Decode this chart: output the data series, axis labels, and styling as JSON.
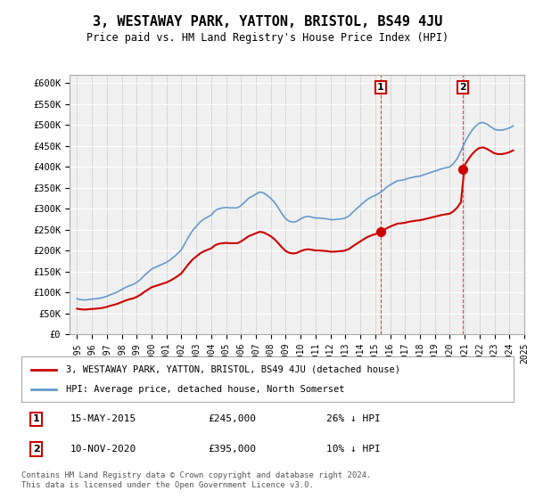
{
  "title": "3, WESTAWAY PARK, YATTON, BRISTOL, BS49 4JU",
  "subtitle": "Price paid vs. HM Land Registry's House Price Index (HPI)",
  "background_color": "#ffffff",
  "plot_bg_color": "#f0f0f0",
  "ylim": [
    0,
    620000
  ],
  "yticks": [
    0,
    50000,
    100000,
    150000,
    200000,
    250000,
    300000,
    350000,
    400000,
    450000,
    500000,
    550000,
    600000
  ],
  "ytick_labels": [
    "£0",
    "£50K",
    "£100K",
    "£150K",
    "£200K",
    "£250K",
    "£300K",
    "£350K",
    "£400K",
    "£450K",
    "£500K",
    "£550K",
    "£600K"
  ],
  "sale1_date": 2015.37,
  "sale1_price": 245000,
  "sale1_label": "1",
  "sale2_date": 2020.87,
  "sale2_price": 395000,
  "sale2_label": "2",
  "hpi_color": "#6699cc",
  "sale_color": "#cc0000",
  "vline_color": "#cc0000",
  "annotation_box_color": "#cc0000",
  "legend_label_sale": "3, WESTAWAY PARK, YATTON, BRISTOL, BS49 4JU (detached house)",
  "legend_label_hpi": "HPI: Average price, detached house, North Somerset",
  "note1_label": "1",
  "note1_date": "15-MAY-2015",
  "note1_price": "£245,000",
  "note1_pct": "26% ↓ HPI",
  "note2_label": "2",
  "note2_date": "10-NOV-2020",
  "note2_price": "£395,000",
  "note2_pct": "10% ↓ HPI",
  "copyright": "Contains HM Land Registry data © Crown copyright and database right 2024.\nThis data is licensed under the Open Government Licence v3.0.",
  "hpi_years": [
    1995.0,
    1995.25,
    1995.5,
    1995.75,
    1996.0,
    1996.25,
    1996.5,
    1996.75,
    1997.0,
    1997.25,
    1997.5,
    1997.75,
    1998.0,
    1998.25,
    1998.5,
    1998.75,
    1999.0,
    1999.25,
    1999.5,
    1999.75,
    2000.0,
    2000.25,
    2000.5,
    2000.75,
    2001.0,
    2001.25,
    2001.5,
    2001.75,
    2002.0,
    2002.25,
    2002.5,
    2002.75,
    2003.0,
    2003.25,
    2003.5,
    2003.75,
    2004.0,
    2004.25,
    2004.5,
    2004.75,
    2005.0,
    2005.25,
    2005.5,
    2005.75,
    2006.0,
    2006.25,
    2006.5,
    2006.75,
    2007.0,
    2007.25,
    2007.5,
    2007.75,
    2008.0,
    2008.25,
    2008.5,
    2008.75,
    2009.0,
    2009.25,
    2009.5,
    2009.75,
    2010.0,
    2010.25,
    2010.5,
    2010.75,
    2011.0,
    2011.25,
    2011.5,
    2011.75,
    2012.0,
    2012.25,
    2012.5,
    2012.75,
    2013.0,
    2013.25,
    2013.5,
    2013.75,
    2014.0,
    2014.25,
    2014.5,
    2014.75,
    2015.0,
    2015.25,
    2015.5,
    2015.75,
    2016.0,
    2016.25,
    2016.5,
    2016.75,
    2017.0,
    2017.25,
    2017.5,
    2017.75,
    2018.0,
    2018.25,
    2018.5,
    2018.75,
    2019.0,
    2019.25,
    2019.5,
    2019.75,
    2020.0,
    2020.25,
    2020.5,
    2020.75,
    2021.0,
    2021.25,
    2021.5,
    2021.75,
    2022.0,
    2022.25,
    2022.5,
    2022.75,
    2023.0,
    2023.25,
    2023.5,
    2023.75,
    2024.0,
    2024.25
  ],
  "hpi_values": [
    85000,
    83000,
    82000,
    83000,
    84000,
    85000,
    86000,
    88000,
    91000,
    95000,
    98000,
    102000,
    107000,
    112000,
    116000,
    119000,
    124000,
    131000,
    140000,
    148000,
    156000,
    160000,
    164000,
    168000,
    172000,
    178000,
    185000,
    193000,
    202000,
    218000,
    234000,
    248000,
    258000,
    268000,
    275000,
    280000,
    285000,
    295000,
    300000,
    302000,
    303000,
    302000,
    302000,
    302000,
    308000,
    316000,
    325000,
    330000,
    335000,
    340000,
    338000,
    332000,
    325000,
    315000,
    302000,
    288000,
    276000,
    270000,
    268000,
    270000,
    276000,
    280000,
    282000,
    280000,
    278000,
    278000,
    277000,
    276000,
    274000,
    274000,
    275000,
    276000,
    278000,
    283000,
    292000,
    300000,
    308000,
    316000,
    323000,
    328000,
    332000,
    337000,
    343000,
    351000,
    357000,
    362000,
    367000,
    368000,
    370000,
    373000,
    375000,
    377000,
    378000,
    381000,
    384000,
    387000,
    390000,
    393000,
    396000,
    398000,
    400000,
    408000,
    420000,
    438000,
    458000,
    474000,
    488000,
    498000,
    505000,
    506000,
    502000,
    496000,
    490000,
    488000,
    488000,
    490000,
    493000,
    498000
  ],
  "sale_years": [
    2015.37,
    2020.87
  ],
  "sale_prices": [
    245000,
    395000
  ]
}
